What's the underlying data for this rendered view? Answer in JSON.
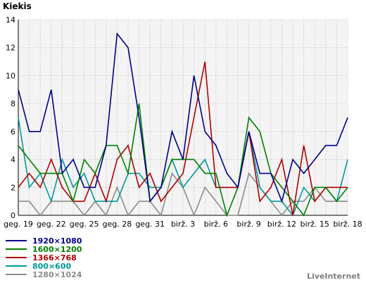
{
  "chart_data": {
    "type": "line",
    "title": "",
    "ylabel": "Kiekis",
    "xlabel": "",
    "ylim": [
      0,
      14
    ],
    "yticks": [
      0,
      2,
      4,
      6,
      8,
      10,
      12,
      14
    ],
    "grid": true,
    "x": [
      "geg. 19",
      "geg. 20",
      "geg. 21",
      "geg. 22",
      "geg. 23",
      "geg. 24",
      "geg. 25",
      "geg. 26",
      "geg. 27",
      "geg. 28",
      "geg. 29",
      "geg. 30",
      "geg. 31",
      "birž. 1",
      "birž. 2",
      "birž. 3",
      "birž. 4",
      "birž. 5",
      "birž. 6",
      "birž. 7",
      "birž. 8",
      "birž. 9",
      "birž. 10",
      "birž. 11",
      "birž. 12",
      "birž. 13",
      "birž. 14",
      "birž. 15",
      "birž. 16",
      "birž. 17",
      "birž. 18"
    ],
    "xtick_labels": [
      {
        "index": 0,
        "label": "geg. 19"
      },
      {
        "index": 3,
        "label": "geg. 22"
      },
      {
        "index": 6,
        "label": "geg. 25"
      },
      {
        "index": 9,
        "label": "geg. 28"
      },
      {
        "index": 12,
        "label": "geg. 31"
      },
      {
        "index": 15,
        "label": "birž. 3"
      },
      {
        "index": 18,
        "label": "birž. 6"
      },
      {
        "index": 21,
        "label": "birž. 9"
      },
      {
        "index": 24,
        "label": "birž. 12"
      },
      {
        "index": 27,
        "label": "birž. 15"
      },
      {
        "index": 30,
        "label": "birž. 18"
      }
    ],
    "series": [
      {
        "name": "1920×1080",
        "color": "#00008b",
        "values": [
          9,
          6,
          6,
          9,
          3,
          4,
          2,
          2,
          5,
          13,
          12,
          7,
          1,
          2,
          6,
          4,
          10,
          6,
          5,
          3,
          2,
          6,
          3,
          3,
          1,
          4,
          3,
          4,
          5,
          5,
          7
        ]
      },
      {
        "name": "1600×1200",
        "color": "#008000",
        "values": [
          5,
          4,
          3,
          3,
          3,
          1,
          4,
          3,
          5,
          5,
          3,
          8,
          1,
          2,
          4,
          4,
          4,
          3,
          3,
          0,
          2,
          7,
          6,
          3,
          2,
          1,
          0,
          2,
          2,
          1,
          2
        ]
      },
      {
        "name": "1366×768",
        "color": "#b00000",
        "values": [
          2,
          3,
          2,
          4,
          2,
          1,
          1,
          3,
          1,
          4,
          5,
          2,
          3,
          1,
          2,
          3,
          7,
          11,
          2,
          2,
          2,
          6,
          1,
          2,
          4,
          0,
          5,
          1,
          2,
          2,
          2
        ]
      },
      {
        "name": "800×600",
        "color": "#009999",
        "values": [
          7,
          2,
          3,
          1,
          4,
          2,
          3,
          1,
          1,
          1,
          3,
          3,
          2,
          2,
          4,
          2,
          3,
          4,
          2,
          2,
          2,
          6,
          2,
          1,
          1,
          0,
          2,
          1,
          2,
          1,
          4
        ]
      },
      {
        "name": "1280×1024",
        "color": "#8c8c8c",
        "values": [
          1,
          1,
          0,
          1,
          1,
          1,
          0,
          1,
          0,
          2,
          0,
          1,
          1,
          0,
          3,
          2,
          0,
          2,
          1,
          0,
          0,
          3,
          2,
          1,
          0,
          1,
          1,
          2,
          1,
          1,
          1
        ]
      }
    ],
    "legend_placement": "bottom-left"
  },
  "brand": "LiveInternet"
}
